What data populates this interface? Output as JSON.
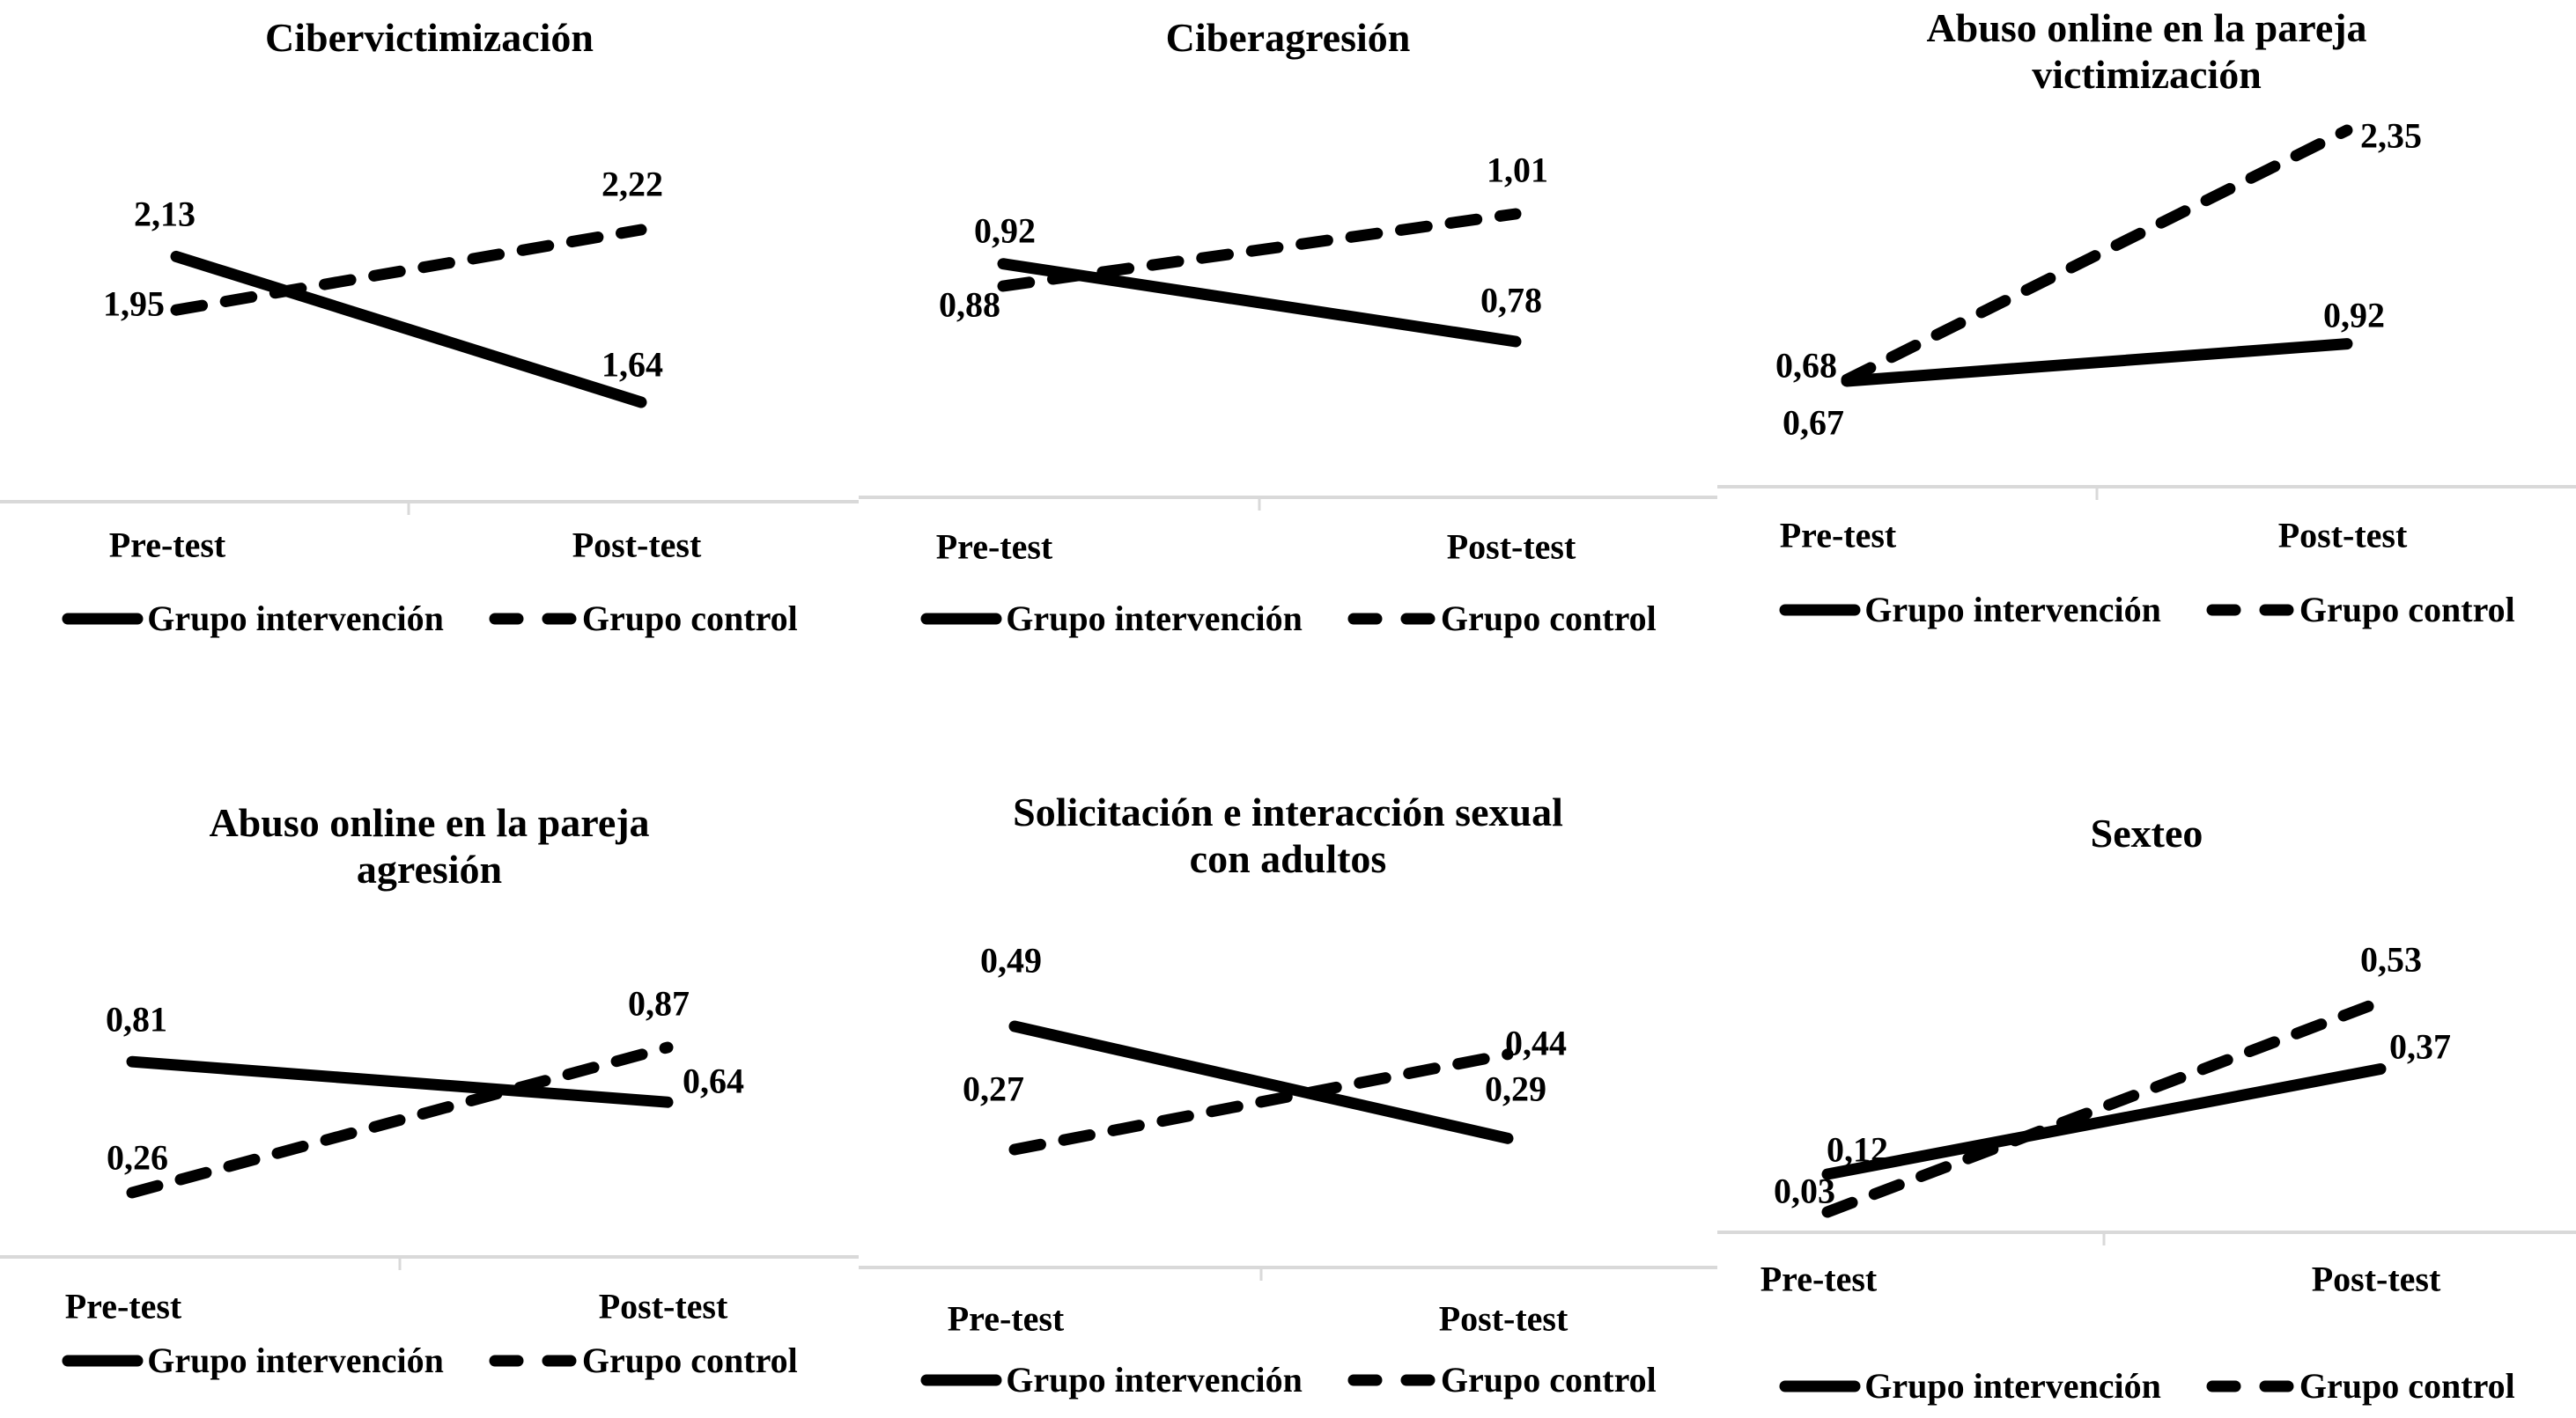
{
  "figure": {
    "description_visible_text_only": true,
    "x_axis_labels": [
      "Pre-test",
      "Post-test"
    ],
    "legend_labels": [
      "Grupo intervención",
      "Grupo control"
    ],
    "colors": {
      "series_line": "#000000",
      "axis_line": "#d9d9d9",
      "text": "#000000",
      "background": "#ffffff"
    }
  },
  "chart_data": [
    {
      "type": "line",
      "title": "Cibervictimización",
      "title_lines": [
        "Cibervictimización"
      ],
      "categories": [
        "Pre-test",
        "Post-test"
      ],
      "series": [
        {
          "name": "Grupo intervención",
          "line_style": "solid",
          "values": [
            2.13,
            1.64
          ],
          "point_labels": [
            "2,13",
            "1,64"
          ]
        },
        {
          "name": "Grupo control",
          "line_style": "dashed",
          "values": [
            1.95,
            2.22
          ],
          "point_labels": [
            "1,95",
            "2,22"
          ]
        }
      ],
      "legend_position": "bottom",
      "grid": false
    },
    {
      "type": "line",
      "title": "Ciberagresión",
      "title_lines": [
        "Ciberagresión"
      ],
      "categories": [
        "Pre-test",
        "Post-test"
      ],
      "series": [
        {
          "name": "Grupo intervención",
          "line_style": "solid",
          "values": [
            0.92,
            0.78
          ],
          "point_labels": [
            "0,92",
            "0,78"
          ]
        },
        {
          "name": "Grupo control",
          "line_style": "dashed",
          "values": [
            0.88,
            1.01
          ],
          "point_labels": [
            "0,88",
            "1,01"
          ]
        }
      ],
      "legend_position": "bottom",
      "grid": false
    },
    {
      "type": "line",
      "title": "Abuso online en la pareja victimización",
      "title_lines": [
        "Abuso online en la pareja",
        "victimización"
      ],
      "categories": [
        "Pre-test",
        "Post-test"
      ],
      "series": [
        {
          "name": "Grupo intervención",
          "line_style": "solid",
          "values": [
            0.67,
            0.92
          ],
          "point_labels": [
            "0,67",
            "0,92"
          ]
        },
        {
          "name": "Grupo control",
          "line_style": "dashed",
          "values": [
            0.68,
            2.35
          ],
          "point_labels": [
            "0,68",
            "2,35"
          ]
        }
      ],
      "legend_position": "bottom",
      "grid": false
    },
    {
      "type": "line",
      "title": "Abuso online en la pareja agresión",
      "title_lines": [
        "Abuso online en la pareja",
        "agresión"
      ],
      "categories": [
        "Pre-test",
        "Post-test"
      ],
      "series": [
        {
          "name": "Grupo intervención",
          "line_style": "solid",
          "values": [
            0.81,
            0.64
          ],
          "point_labels": [
            "0,81",
            "0,64"
          ]
        },
        {
          "name": "Grupo control",
          "line_style": "dashed",
          "values": [
            0.26,
            0.87
          ],
          "point_labels": [
            "0,26",
            "0,87"
          ]
        }
      ],
      "legend_position": "bottom",
      "grid": false
    },
    {
      "type": "line",
      "title": "Solicitación e interacción sexual con adultos",
      "title_lines": [
        "Solicitación e interacción sexual",
        "con adultos"
      ],
      "categories": [
        "Pre-test",
        "Post-test"
      ],
      "series": [
        {
          "name": "Grupo intervención",
          "line_style": "solid",
          "values": [
            0.49,
            0.29
          ],
          "point_labels": [
            "0,49",
            "0,29"
          ]
        },
        {
          "name": "Grupo control",
          "line_style": "dashed",
          "values": [
            0.27,
            0.44
          ],
          "point_labels": [
            "0,27",
            "0,44"
          ]
        }
      ],
      "legend_position": "bottom",
      "grid": false
    },
    {
      "type": "line",
      "title": "Sexteo",
      "title_lines": [
        "Sexteo"
      ],
      "categories": [
        "Pre-test",
        "Post-test"
      ],
      "series": [
        {
          "name": "Grupo intervención",
          "line_style": "solid",
          "values": [
            0.12,
            0.37
          ],
          "point_labels": [
            "0,12",
            "0,37"
          ]
        },
        {
          "name": "Grupo control",
          "line_style": "dashed",
          "values": [
            0.03,
            0.53
          ],
          "point_labels": [
            "0,03",
            "0,53"
          ]
        }
      ],
      "legend_position": "bottom",
      "grid": false
    }
  ]
}
